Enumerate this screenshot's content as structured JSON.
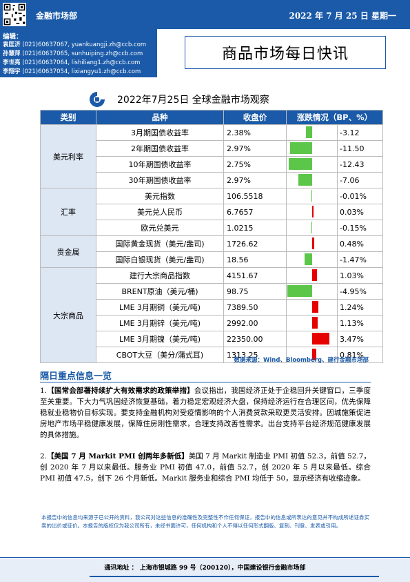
{
  "header": {
    "department": "金融市场部",
    "date": "2022 年 7 月 25 日  星期一"
  },
  "editors": {
    "label": "编辑：",
    "list": [
      {
        "name": "袁匡济",
        "phone": "(021)60637067,",
        "email": "yuankuangji.zh@ccb.com"
      },
      {
        "name": "孙慧萍",
        "phone": "(021)60637065,",
        "email": "sunhuiping.zh@ccb.com"
      },
      {
        "name": "李世亮",
        "phone": "(021)60637064,",
        "email": "lishiliang1.zh@ccb.com"
      },
      {
        "name": "李翔宇",
        "phone": "(021)60637054,",
        "email": "lixiangyu1.zh@ccb.com"
      }
    ]
  },
  "title": "商品市场每日快讯",
  "table": {
    "title": "2022年7月25日 全球金融市场观察",
    "headers": [
      "类别",
      "品种",
      "收盘价",
      "涨跌情况（BP、%）"
    ],
    "colors": {
      "header": "#1a5aa8",
      "negative": "#5cc648",
      "positive": "#e60000"
    },
    "groups": [
      {
        "category": "美元利率",
        "rows": [
          {
            "name": "3月期国债收益率",
            "close": "2.38%",
            "change": "-3.12",
            "value": -3.12
          },
          {
            "name": "2年期国债收益率",
            "close": "2.97%",
            "change": "-11.50",
            "value": -11.5
          },
          {
            "name": "10年期国债收益率",
            "close": "2.75%",
            "change": "-12.43",
            "value": -12.43
          },
          {
            "name": "30年期国债收益率",
            "close": "2.97%",
            "change": "-7.06",
            "value": -7.06
          }
        ]
      },
      {
        "category": "汇率",
        "rows": [
          {
            "name": "美元指数",
            "close": "106.5518",
            "change": "-0.01%",
            "value": -0.01
          },
          {
            "name": "美元兑人民币",
            "close": "6.7657",
            "change": "0.03%",
            "value": 0.03
          },
          {
            "name": "欧元兑美元",
            "close": "1.0215",
            "change": "-0.15%",
            "value": -0.15
          }
        ]
      },
      {
        "category": "贵金属",
        "rows": [
          {
            "name": "国际黄金现货（美元/盎司)",
            "close": "1726.62",
            "change": "0.48%",
            "value": 0.48
          },
          {
            "name": "国际白银现货（美元/盎司)",
            "close": "18.56",
            "change": "-1.47%",
            "value": -1.47
          }
        ]
      },
      {
        "category": "大宗商品",
        "rows": [
          {
            "name": "建行大宗商品指数",
            "close": "4151.67",
            "change": "1.03%",
            "value": 1.03
          },
          {
            "name": "BRENT原油（美元/桶)",
            "close": "98.75",
            "change": "-4.95%",
            "value": -4.95
          },
          {
            "name": "LME 3月期铜（美元/吨)",
            "close": "7389.50",
            "change": "1.24%",
            "value": 1.24
          },
          {
            "name": "LME 3月期锌（美元/吨)",
            "close": "2992.00",
            "change": "1.13%",
            "value": 1.13
          },
          {
            "name": "LME 3月期镍（美元/吨)",
            "close": "22350.00",
            "change": "3.47%",
            "value": 3.47
          },
          {
            "name": "CBOT大豆（美分/蒲式耳)",
            "close": "1313.25",
            "change": "0.81%",
            "value": 0.81
          }
        ]
      }
    ],
    "source": "数据来源：Wind、Bloomberg、建行金融市场部"
  },
  "section_title": "隔日重点信息一览",
  "news": [
    {
      "num": "1.",
      "headline": "【国常会部署持续扩大有效需求的政策举措】",
      "body": "会议指出，我国经济正处于企稳回升关键窗口，三季度至关重要。下大力气巩固经济恢复基础，着力稳定宏观经济大盘，保持经济运行在合理区间，优先保障稳就业稳物价目标实现。要支持金融机构对受疫情影响的个人消费贷款采取更灵活安排。因城施策促进房地产市场平稳健康发展，保障住房刚性需求，合理支持改善性需求。出台支持平台经济规范健康发展的具体措施。"
    },
    {
      "num": "2.",
      "headline": "【美国 7 月 Markit PMI 创两年多新低】",
      "body": "美国 7 月 Markit 制造业 PMI 初值 52.3，前值 52.7，创 2020 年 7 月以来最低。服务业 PMI 初值 47.0，前值 52.7，创 2020 年 5 月以来最低。综合 PMI 初值 47.5，创下 26 个月新低。Markit 服务业和综合 PMI 均低于 50，显示经济有收缩迹象。"
    }
  ],
  "disclaimer": "本报告中的信息均来源于已公开的资料，我公司对这些信息的准确性及完整性不作任何保证，报告中的信息或所表达的意见并不构成所述证券买卖的出价或征价。本报告的版权仅为我公司所有，未经书面许可，任何机构和个人不得以任何形式翻版、复制、刊登、发表或引用。",
  "footer": "通讯地址 ： 上海市银城路 99 号（200120），中国建设银行金融市场部"
}
